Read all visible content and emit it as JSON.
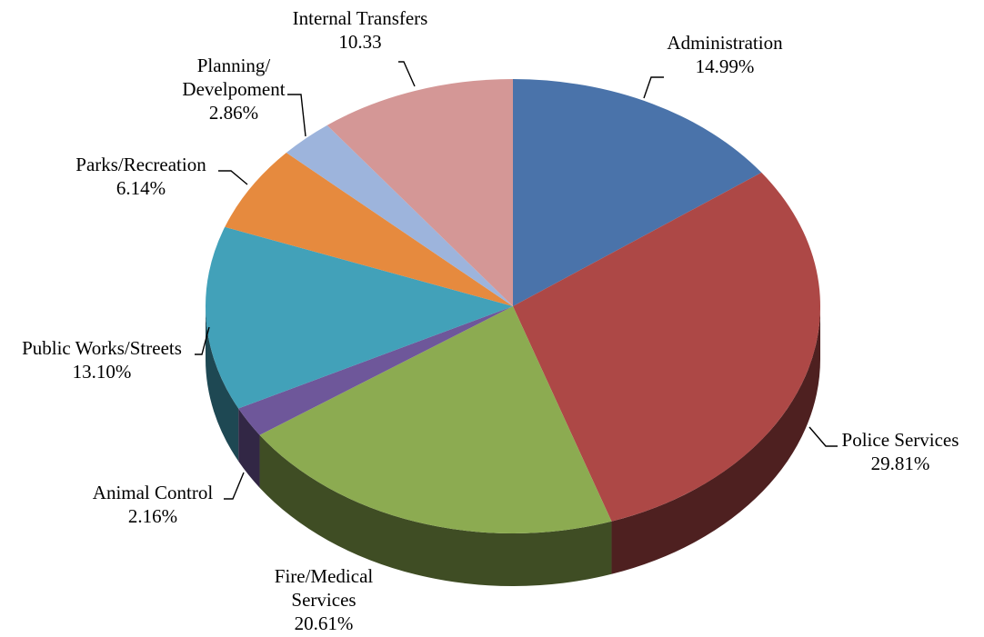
{
  "chart_data": {
    "type": "pie",
    "style": "3d",
    "slices": [
      {
        "name": "Administration",
        "display_lines": [
          "Administration",
          "14.99%"
        ],
        "value": 14.99,
        "color": "#4a73aa"
      },
      {
        "name": "Police Services",
        "display_lines": [
          "Police Services",
          "29.81%"
        ],
        "value": 29.81,
        "color": "#ad4846"
      },
      {
        "name": "Fire/Medical Services",
        "display_lines": [
          "Fire/Medical",
          "Services",
          "20.61%"
        ],
        "value": 20.61,
        "color": "#8cab51"
      },
      {
        "name": "Animal Control",
        "display_lines": [
          "Animal Control",
          "2.16%"
        ],
        "value": 2.16,
        "color": "#6e579a"
      },
      {
        "name": "Public Works/Streets",
        "display_lines": [
          "Public Works/Streets",
          "13.10%"
        ],
        "value": 13.1,
        "color": "#42a1b9"
      },
      {
        "name": "Parks/Recreation",
        "display_lines": [
          "Parks/Recreation",
          "6.14%"
        ],
        "value": 6.14,
        "color": "#e68a3e"
      },
      {
        "name": "Planning/Develpoment",
        "display_lines": [
          "Planning/",
          "Develpoment",
          "2.86%"
        ],
        "value": 2.86,
        "color": "#9db4dc"
      },
      {
        "name": "Internal Transfers",
        "display_lines": [
          "Internal Transfers",
          "10.33"
        ],
        "value": 10.33,
        "color": "#d49796"
      }
    ]
  }
}
